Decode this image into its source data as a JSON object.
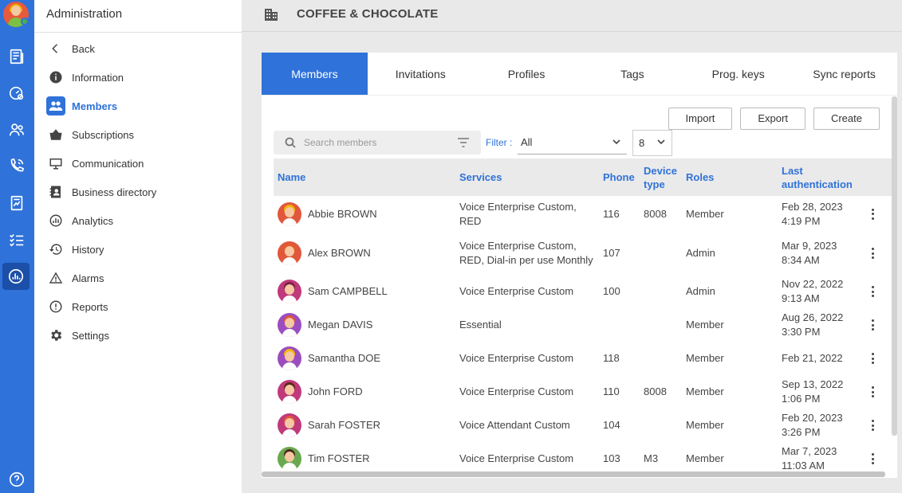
{
  "sidebar": {
    "title": "Administration",
    "items": [
      {
        "label": "Back",
        "icon": "chevron-left-icon"
      },
      {
        "label": "Information",
        "icon": "info-icon"
      },
      {
        "label": "Members",
        "icon": "members-icon",
        "active": true
      },
      {
        "label": "Subscriptions",
        "icon": "basket-icon"
      },
      {
        "label": "Communication",
        "icon": "monitor-icon"
      },
      {
        "label": "Business directory",
        "icon": "directory-icon"
      },
      {
        "label": "Analytics",
        "icon": "analytics-icon"
      },
      {
        "label": "History",
        "icon": "history-icon"
      },
      {
        "label": "Alarms",
        "icon": "alarm-icon"
      },
      {
        "label": "Reports",
        "icon": "report-icon"
      },
      {
        "label": "Settings",
        "icon": "gear-icon"
      }
    ]
  },
  "header": {
    "company": "COFFEE & CHOCOLATE",
    "icon": "building-icon"
  },
  "tabs": [
    {
      "label": "Members",
      "active": true
    },
    {
      "label": "Invitations"
    },
    {
      "label": "Profiles"
    },
    {
      "label": "Tags"
    },
    {
      "label": "Prog. keys"
    },
    {
      "label": "Sync reports"
    }
  ],
  "toolbar": {
    "import_label": "Import",
    "export_label": "Export",
    "create_label": "Create"
  },
  "search": {
    "placeholder": "Search members"
  },
  "filter": {
    "label": "Filter :",
    "value": "All",
    "page_size": "8"
  },
  "table": {
    "headers": {
      "name": "Name",
      "services": "Services",
      "phone": "Phone",
      "device_type": "Device type",
      "roles": "Roles",
      "last_auth": "Last authentication"
    },
    "rows": [
      {
        "name": "Abbie BROWN",
        "services": "Voice Enterprise Custom, RED",
        "phone": "116",
        "device": "8008",
        "role": "Member",
        "auth_date": "Feb 28, 2023",
        "auth_time": "4:19 PM",
        "avatar_color": "#e0573b",
        "hair_color": "#f2b400"
      },
      {
        "name": "Alex BROWN",
        "services": "Voice Enterprise Custom, RED, Dial-in per use Monthly",
        "phone": "107",
        "device": "",
        "role": "Admin",
        "auth_date": "Mar 9, 2023",
        "auth_time": "8:34 AM",
        "avatar_color": "#e0573b",
        "hair_color": "#e35d2a"
      },
      {
        "name": "Sam CAMPBELL",
        "services": "Voice Enterprise Custom",
        "phone": "100",
        "device": "",
        "role": "Admin",
        "auth_date": "Nov 22, 2022",
        "auth_time": "9:13 AM",
        "avatar_color": "#c0397a",
        "hair_color": "#7a2245"
      },
      {
        "name": "Megan DAVIS",
        "services": "Essential",
        "phone": "",
        "device": "",
        "role": "Member",
        "auth_date": "Aug 26, 2022",
        "auth_time": "3:30 PM",
        "avatar_color": "#9b4dbf",
        "hair_color": "#e0573b"
      },
      {
        "name": "Samantha DOE",
        "services": "Voice Enterprise Custom",
        "phone": "118",
        "device": "",
        "role": "Member",
        "auth_date": "Feb 21, 2022",
        "auth_time": "",
        "avatar_color": "#9b4dbf",
        "hair_color": "#f2b400"
      },
      {
        "name": "John FORD",
        "services": "Voice Enterprise Custom",
        "phone": "110",
        "device": "8008",
        "role": "Member",
        "auth_date": "Sep 13, 2022",
        "auth_time": "1:06 PM",
        "avatar_color": "#c0397a",
        "hair_color": "#5a2a1a"
      },
      {
        "name": "Sarah FOSTER",
        "services": "Voice Attendant Custom",
        "phone": "104",
        "device": "",
        "role": "Member",
        "auth_date": "Feb 20, 2023",
        "auth_time": "3:26 PM",
        "avatar_color": "#c0397a",
        "hair_color": "#e0573b"
      },
      {
        "name": "Tim FOSTER",
        "services": "Voice Enterprise Custom",
        "phone": "103",
        "device": "M3",
        "role": "Member",
        "auth_date": "Mar 7, 2023",
        "auth_time": "11:03 AM",
        "avatar_color": "#6aa84f",
        "hair_color": "#4a2a1a"
      }
    ]
  }
}
